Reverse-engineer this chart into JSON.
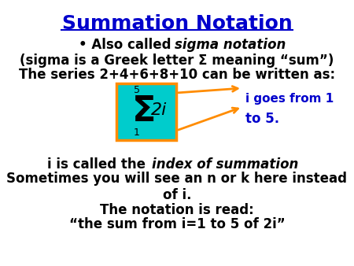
{
  "title": "Summation Notation",
  "title_color": "#0000CC",
  "bg_color": "#FFFFFF",
  "line1_normal": "• Also called ",
  "line1_italic": "sigma notation",
  "line2": "(sigma is a Greek letter Σ meaning “sum”)",
  "line3": "The series 2+4+6+8+10 can be written as:",
  "line4_normal": "i is called the ",
  "line4_italic": "index of summation",
  "line5": "Sometimes you will see an n or k here instead\nof i.",
  "line6": "The notation is read:",
  "line7": "“the sum from i=1 to 5 of 2i”",
  "arrow_label1": "i goes from 1",
  "arrow_label2": "to 5.",
  "box_bg": "#00CCCC",
  "box_border": "#FF8C00",
  "text_color": "#000000",
  "blue_color": "#0000CC",
  "orange_color": "#FF8C00"
}
